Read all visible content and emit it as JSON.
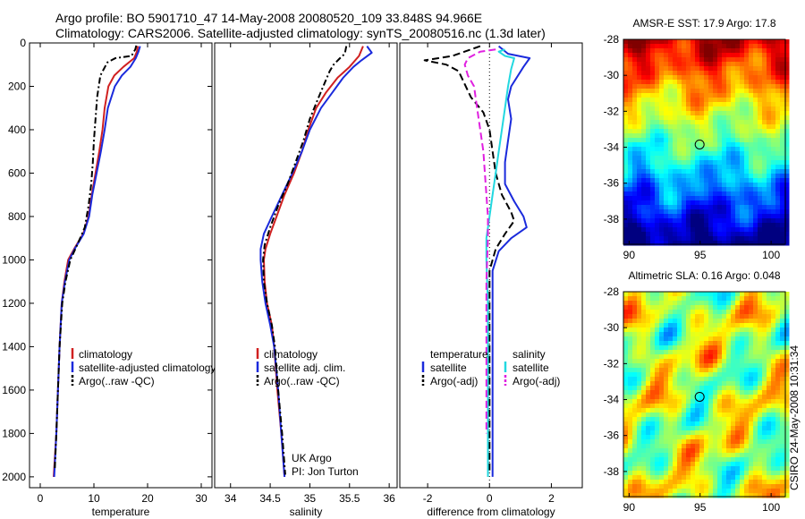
{
  "header": {
    "line1": "Argo profile: BO 5901710_47 14-May-2008 20080520_109 33.848S 94.966E",
    "line2": "Climatology: CARS2006. Satellite-adjusted climatology: synTS_20080516.nc (1.3d later)"
  },
  "timestamp": "CSIRO 24-May-2008 10:31:34",
  "colors": {
    "climatology": "#d02020",
    "satellite": "#1a2adc",
    "argo": "#000000",
    "satellite_salinity": "#22d8e0",
    "argo_adj_salinity": "#e020e0"
  },
  "chart_data": [
    {
      "type": "line",
      "xlabel": "temperature",
      "ylabel": "",
      "xlim": [
        -2,
        32
      ],
      "ylim": [
        2050,
        0
      ],
      "xticks": [
        0,
        10,
        20,
        30
      ],
      "yticks": [
        0,
        200,
        400,
        600,
        800,
        1000,
        1200,
        1400,
        1600,
        1800,
        2000
      ],
      "legend": [
        "climatology",
        "satellite-adjusted climatology",
        "Argo(..raw -QC)"
      ],
      "series": [
        {
          "name": "climatology",
          "color": "#d02020",
          "dash": "",
          "points": [
            [
              18.2,
              15
            ],
            [
              18.0,
              40
            ],
            [
              17.5,
              70
            ],
            [
              15.5,
              110
            ],
            [
              13.8,
              150
            ],
            [
              12.7,
              200
            ],
            [
              12.0,
              300
            ],
            [
              11.6,
              400
            ],
            [
              11.0,
              500
            ],
            [
              10.3,
              600
            ],
            [
              9.6,
              700
            ],
            [
              9.0,
              800
            ],
            [
              8.0,
              880
            ],
            [
              6.3,
              950
            ],
            [
              5.2,
              1000
            ],
            [
              4.5,
              1100
            ],
            [
              4.0,
              1200
            ],
            [
              3.6,
              1400
            ],
            [
              3.3,
              1600
            ],
            [
              3.0,
              1800
            ],
            [
              2.5,
              2000
            ]
          ]
        },
        {
          "name": "satellite-adjusted climatology",
          "color": "#1a2adc",
          "dash": "",
          "points": [
            [
              18.6,
              15
            ],
            [
              18.3,
              40
            ],
            [
              17.8,
              70
            ],
            [
              16.8,
              110
            ],
            [
              15.2,
              150
            ],
            [
              13.9,
              200
            ],
            [
              12.6,
              300
            ],
            [
              12.0,
              400
            ],
            [
              11.3,
              500
            ],
            [
              10.5,
              600
            ],
            [
              9.7,
              700
            ],
            [
              9.1,
              800
            ],
            [
              8.1,
              880
            ],
            [
              6.4,
              950
            ],
            [
              5.4,
              1000
            ],
            [
              4.6,
              1100
            ],
            [
              4.0,
              1200
            ],
            [
              3.6,
              1400
            ],
            [
              3.3,
              1600
            ],
            [
              3.0,
              1800
            ],
            [
              2.6,
              2000
            ]
          ]
        },
        {
          "name": "Argo(..raw -QC)",
          "color": "#000000",
          "dash": "7,3,2,3",
          "points": [
            [
              17.9,
              12
            ],
            [
              17.7,
              30
            ],
            [
              17.0,
              60
            ],
            [
              14.0,
              70
            ],
            [
              12.5,
              90
            ],
            [
              11.2,
              150
            ],
            [
              10.6,
              250
            ],
            [
              10.3,
              350
            ],
            [
              10.0,
              450
            ],
            [
              9.8,
              550
            ],
            [
              9.5,
              650
            ],
            [
              9.0,
              750
            ],
            [
              8.3,
              850
            ],
            [
              6.9,
              930
            ],
            [
              5.6,
              1000
            ],
            [
              4.7,
              1100
            ],
            [
              4.1,
              1200
            ],
            [
              3.6,
              1400
            ],
            [
              3.3,
              1600
            ],
            [
              3.0,
              1800
            ],
            [
              2.7,
              1970
            ]
          ]
        }
      ],
      "annotations": []
    },
    {
      "type": "line",
      "xlabel": "salinity",
      "ylabel": "",
      "xlim": [
        33.8,
        36.1
      ],
      "ylim": [
        2050,
        0
      ],
      "xticks": [
        34,
        34.5,
        35,
        35.5,
        36
      ],
      "yticks": [],
      "legend": [
        "climatology",
        "satellite adj. clim.",
        "Argo(..raw -QC)"
      ],
      "series": [
        {
          "name": "climatology",
          "color": "#d02020",
          "dash": "",
          "points": [
            [
              35.67,
              15
            ],
            [
              35.62,
              60
            ],
            [
              35.5,
              110
            ],
            [
              35.35,
              160
            ],
            [
              35.2,
              230
            ],
            [
              35.08,
              300
            ],
            [
              34.98,
              400
            ],
            [
              34.9,
              500
            ],
            [
              34.8,
              600
            ],
            [
              34.68,
              700
            ],
            [
              34.58,
              800
            ],
            [
              34.5,
              880
            ],
            [
              34.44,
              950
            ],
            [
              34.42,
              1000
            ],
            [
              34.43,
              1100
            ],
            [
              34.46,
              1200
            ],
            [
              34.52,
              1300
            ],
            [
              34.55,
              1400
            ],
            [
              34.59,
              1600
            ],
            [
              34.64,
              1800
            ],
            [
              34.68,
              2000
            ]
          ]
        },
        {
          "name": "satellite adj. clim.",
          "color": "#1a2adc",
          "dash": "",
          "points": [
            [
              35.72,
              15
            ],
            [
              35.78,
              45
            ],
            [
              35.65,
              80
            ],
            [
              35.55,
              110
            ],
            [
              35.42,
              160
            ],
            [
              35.28,
              230
            ],
            [
              35.14,
              300
            ],
            [
              35.0,
              400
            ],
            [
              34.9,
              500
            ],
            [
              34.78,
              600
            ],
            [
              34.65,
              700
            ],
            [
              34.52,
              800
            ],
            [
              34.42,
              880
            ],
            [
              34.38,
              950
            ],
            [
              34.38,
              1000
            ],
            [
              34.4,
              1100
            ],
            [
              34.44,
              1200
            ],
            [
              34.5,
              1300
            ],
            [
              34.55,
              1400
            ],
            [
              34.6,
              1600
            ],
            [
              34.64,
              1800
            ],
            [
              34.68,
              2000
            ]
          ]
        },
        {
          "name": "Argo(..raw -QC)",
          "color": "#000000",
          "dash": "7,3,2,3",
          "points": [
            [
              35.46,
              15
            ],
            [
              35.44,
              50
            ],
            [
              35.38,
              70
            ],
            [
              35.3,
              100
            ],
            [
              35.25,
              130
            ],
            [
              35.18,
              190
            ],
            [
              35.1,
              260
            ],
            [
              35.0,
              350
            ],
            [
              34.92,
              450
            ],
            [
              34.82,
              550
            ],
            [
              34.72,
              650
            ],
            [
              34.6,
              750
            ],
            [
              34.5,
              850
            ],
            [
              34.43,
              930
            ],
            [
              34.41,
              1000
            ],
            [
              34.42,
              1100
            ],
            [
              34.46,
              1200
            ],
            [
              34.52,
              1300
            ],
            [
              34.56,
              1400
            ],
            [
              34.6,
              1600
            ],
            [
              34.65,
              1800
            ],
            [
              34.69,
              1990
            ]
          ]
        }
      ],
      "annotations": [
        "UK Argo",
        "PI: Jon Turton"
      ]
    },
    {
      "type": "line",
      "xlabel": "difference from climatology",
      "ylabel": "",
      "xlim": [
        -2.9,
        3.0
      ],
      "ylim": [
        2050,
        0
      ],
      "xticks": [
        -2,
        0,
        2
      ],
      "yticks": [],
      "legend_groups": [
        {
          "title": "temperature",
          "entries": [
            "satellite",
            "Argo(-adj)"
          ]
        },
        {
          "title": "salinity",
          "entries": [
            "satellite",
            "Argo(-adj)"
          ]
        }
      ],
      "series": [
        {
          "name": "satellite",
          "group": "temperature",
          "color": "#1a2adc",
          "dash": "",
          "points": [
            [
              0.3,
              15
            ],
            [
              0.6,
              50
            ],
            [
              1.3,
              70
            ],
            [
              1.1,
              110
            ],
            [
              0.7,
              200
            ],
            [
              0.6,
              260
            ],
            [
              0.7,
              350
            ],
            [
              0.6,
              450
            ],
            [
              0.5,
              550
            ],
            [
              0.5,
              650
            ],
            [
              0.8,
              730
            ],
            [
              1.1,
              800
            ],
            [
              1.2,
              850
            ],
            [
              0.7,
              900
            ],
            [
              0.3,
              960
            ],
            [
              0.1,
              1050
            ],
            [
              0.1,
              1300
            ],
            [
              0.1,
              1600
            ],
            [
              0.1,
              1800
            ],
            [
              0.1,
              2000
            ]
          ]
        },
        {
          "name": "Argo(-adj)",
          "group": "temperature",
          "color": "#000000",
          "dash": "8,4",
          "points": [
            [
              -0.3,
              15
            ],
            [
              -1.2,
              60
            ],
            [
              -2.1,
              80
            ],
            [
              -1.4,
              100
            ],
            [
              -1.0,
              130
            ],
            [
              -0.6,
              250
            ],
            [
              -0.2,
              320
            ],
            [
              0.0,
              400
            ],
            [
              0.1,
              500
            ],
            [
              0.2,
              600
            ],
            [
              0.4,
              700
            ],
            [
              0.7,
              780
            ],
            [
              0.8,
              820
            ],
            [
              0.5,
              880
            ],
            [
              0.2,
              950
            ],
            [
              0.0,
              1050
            ],
            [
              0.0,
              1300
            ],
            [
              0.0,
              1600
            ],
            [
              0.0,
              1800
            ],
            [
              0.0,
              1970
            ]
          ]
        },
        {
          "name": "satellite",
          "group": "salinity",
          "color": "#22d8e0",
          "dash": "",
          "points": [
            [
              0.5,
              30
            ],
            [
              0.3,
              40
            ],
            [
              0.5,
              60
            ],
            [
              0.8,
              70
            ],
            [
              0.7,
              120
            ],
            [
              0.6,
              200
            ],
            [
              0.5,
              300
            ],
            [
              0.4,
              400
            ],
            [
              0.3,
              500
            ],
            [
              0.2,
              600
            ],
            [
              0.1,
              700
            ],
            [
              0.0,
              800
            ],
            [
              -0.1,
              900
            ],
            [
              -0.1,
              1000
            ],
            [
              -0.05,
              1200
            ],
            [
              -0.05,
              1500
            ],
            [
              -0.05,
              1800
            ],
            [
              -0.05,
              2000
            ]
          ]
        },
        {
          "name": "Argo(-adj)",
          "group": "salinity",
          "color": "#e020e0",
          "dash": "8,4",
          "points": [
            [
              0.2,
              30
            ],
            [
              -0.3,
              40
            ],
            [
              -0.7,
              70
            ],
            [
              -0.8,
              100
            ],
            [
              -0.7,
              150
            ],
            [
              -0.5,
              200
            ],
            [
              -0.4,
              300
            ],
            [
              -0.2,
              500
            ],
            [
              -0.1,
              700
            ],
            [
              -0.05,
              800
            ],
            [
              -0.05,
              900
            ],
            [
              -0.1,
              1100
            ],
            [
              -0.1,
              1300
            ],
            [
              -0.1,
              1500
            ],
            [
              -0.1,
              1700
            ],
            [
              -0.1,
              1800
            ]
          ]
        }
      ],
      "annotations": []
    },
    {
      "type": "heatmap",
      "title": "AMSR-E SST: 17.9 Argo: 17.8",
      "xlim": [
        89.6,
        101
      ],
      "ylim": [
        -39.4,
        -28
      ],
      "xticks": [
        90,
        95,
        100
      ],
      "yticks": [
        -28,
        -30,
        -32,
        -34,
        -36,
        -38
      ],
      "colormap": "jet",
      "marker": {
        "lon": 94.966,
        "lat": -33.848
      },
      "pattern": "sst"
    },
    {
      "type": "heatmap",
      "title": "Altimetric SLA: 0.16 Argo: 0.048",
      "xlim": [
        89.6,
        101
      ],
      "ylim": [
        -39.4,
        -28
      ],
      "xticks": [
        90,
        95,
        100
      ],
      "yticks": [
        -28,
        -30,
        -32,
        -34,
        -36,
        -38
      ],
      "colormap": "jet",
      "marker": {
        "lon": 94.966,
        "lat": -33.848
      },
      "pattern": "sla"
    }
  ]
}
